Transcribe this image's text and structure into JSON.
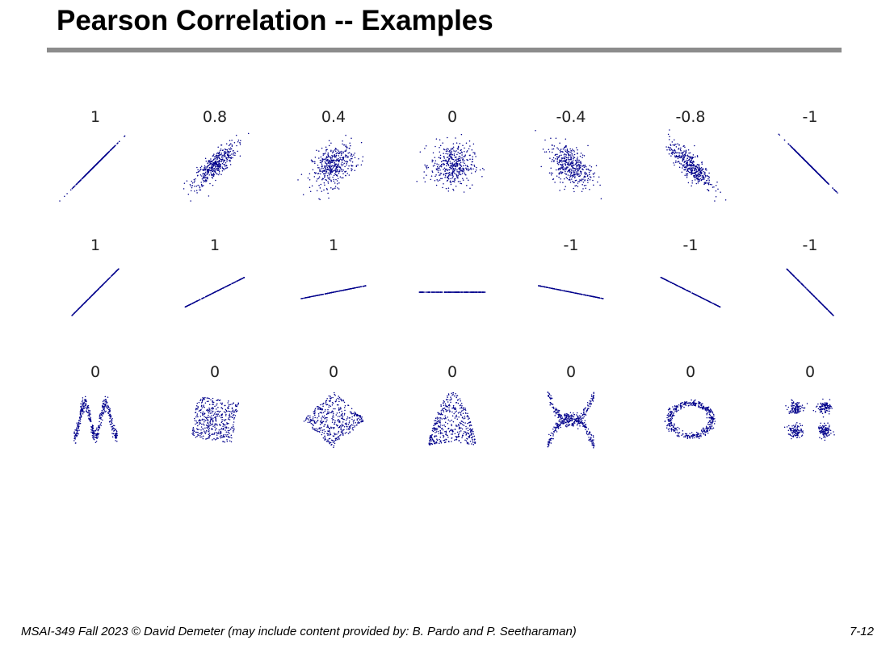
{
  "slide": {
    "title": "Pearson Correlation -- Examples",
    "footer": "MSAI-349 Fall 2023 © David Demeter (may include content provided by: B. Pardo and P. Seetharaman)",
    "page_number": "7-12",
    "accent_color": "#8c8c8c"
  },
  "chart_data": {
    "type": "scatter",
    "point_color": "#00008b",
    "rows": [
      {
        "labels": [
          "1",
          "0.8",
          "0.4",
          "0",
          "-0.4",
          "-0.8",
          "-1"
        ],
        "shapes": [
          "corr",
          "corr",
          "corr",
          "corr",
          "corr",
          "corr",
          "corr"
        ],
        "params": [
          1,
          0.8,
          0.4,
          0,
          -0.4,
          -0.8,
          -1
        ]
      },
      {
        "labels": [
          "1",
          "1",
          "1",
          "",
          "-1",
          "-1",
          "-1"
        ],
        "shapes": [
          "line",
          "line",
          "line",
          "line",
          "line",
          "line",
          "line"
        ],
        "params": [
          1.0,
          0.5,
          0.2,
          0,
          -0.2,
          -0.5,
          -1.0
        ]
      },
      {
        "labels": [
          "0",
          "0",
          "0",
          "0",
          "0",
          "0",
          "0"
        ],
        "shapes": [
          "wave",
          "rotated-square",
          "diamond",
          "parabola",
          "cross",
          "ring",
          "clusters"
        ],
        "params": [
          0,
          0,
          0,
          0,
          0,
          0,
          0
        ]
      }
    ]
  }
}
